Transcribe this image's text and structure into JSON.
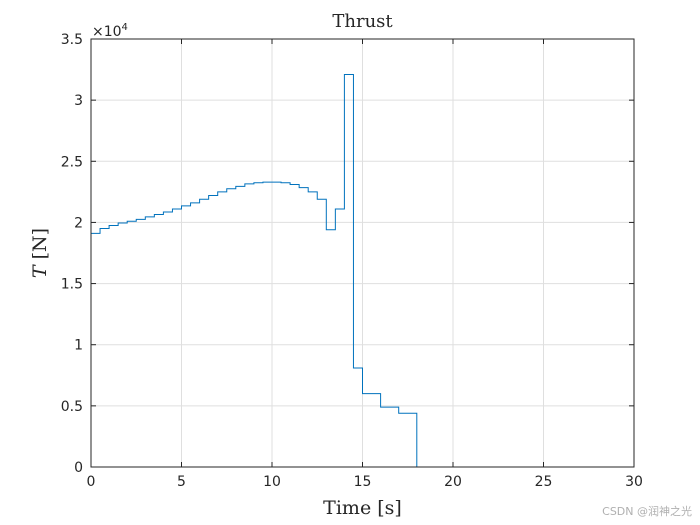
{
  "chart_data": {
    "type": "line",
    "step": true,
    "title": "Thrust",
    "xlabel": "Time [s]",
    "ylabel_var": "T",
    "ylabel_unit": "[N]",
    "xlim": [
      0,
      30
    ],
    "ylim": [
      0,
      35000
    ],
    "y_exponent_label": "×10",
    "y_exponent_power": "4",
    "x_ticks": [
      0,
      5,
      10,
      15,
      20,
      25,
      30
    ],
    "x_tick_labels": [
      "0",
      "5",
      "10",
      "15",
      "20",
      "25",
      "30"
    ],
    "y_ticks": [
      0,
      5000,
      10000,
      15000,
      20000,
      25000,
      30000,
      35000
    ],
    "y_tick_labels": [
      "0",
      "0.5",
      "1",
      "1.5",
      "2",
      "2.5",
      "3",
      "3.5"
    ],
    "grid": true,
    "box": true,
    "series": [
      {
        "color": "#0072BD",
        "x": [
          0,
          0.5,
          1,
          1.5,
          2,
          2.5,
          3,
          3.5,
          4,
          4.5,
          5,
          5.5,
          6,
          6.5,
          7,
          7.5,
          8,
          8.5,
          9,
          9.5,
          10,
          10.5,
          11,
          11.5,
          12,
          12.5,
          13,
          13.5,
          14,
          14.5,
          15,
          16,
          17,
          18,
          19,
          20,
          25,
          30
        ],
        "y": [
          19100,
          19500,
          19750,
          19950,
          20100,
          20250,
          20450,
          20650,
          20850,
          21100,
          21350,
          21600,
          21900,
          22200,
          22500,
          22750,
          22950,
          23150,
          23250,
          23300,
          23300,
          23250,
          23100,
          22850,
          22500,
          21900,
          19400,
          21100,
          32100,
          8100,
          6000,
          4900,
          4400,
          0,
          0,
          0,
          0,
          0
        ]
      }
    ]
  },
  "watermark": "CSDN @润神之光"
}
